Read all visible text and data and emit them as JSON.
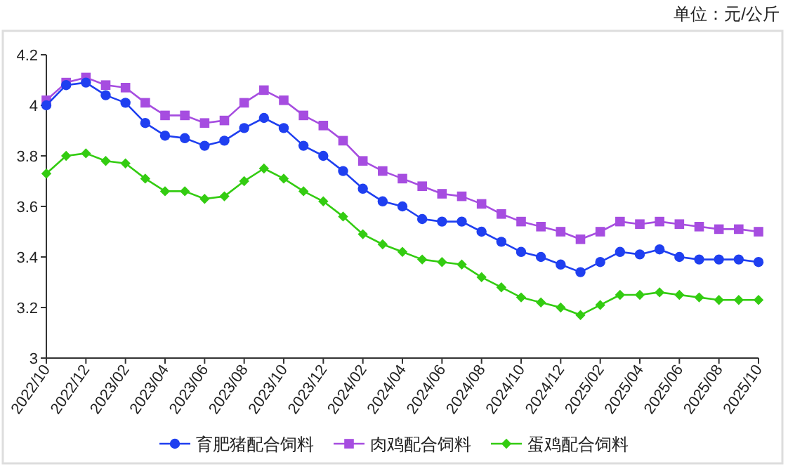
{
  "chart_data": {
    "type": "line",
    "title": "单位：元/公斤",
    "categories": [
      "2022/10",
      null,
      "2022/12",
      null,
      "2023/02",
      null,
      "2023/04",
      null,
      "2023/06",
      null,
      "2023/08",
      null,
      "2023/10",
      null,
      "2023/12",
      null,
      "2024/02",
      null,
      "2024/04",
      null,
      "2024/06",
      null,
      "2024/08",
      null,
      "2024/10",
      null,
      "2024/12",
      null,
      "2025/02",
      null,
      "2025/04",
      null,
      "2025/06",
      null,
      "2025/08",
      null,
      "2025/10"
    ],
    "series": [
      {
        "name": "育肥猪配合饲料",
        "color": "#1f3ff0",
        "marker": "circle",
        "values": [
          4.0,
          4.08,
          4.09,
          4.04,
          4.01,
          3.93,
          3.88,
          3.87,
          3.84,
          3.86,
          3.91,
          3.95,
          3.91,
          3.84,
          3.8,
          3.74,
          3.67,
          3.62,
          3.6,
          3.55,
          3.54,
          3.54,
          3.5,
          3.46,
          3.42,
          3.4,
          3.37,
          3.34,
          3.38,
          3.42,
          3.41,
          3.43,
          3.4,
          3.39,
          3.39,
          3.39,
          3.38
        ]
      },
      {
        "name": "肉鸡配合饲料",
        "color": "#a64de0",
        "marker": "square",
        "values": [
          4.02,
          4.09,
          4.11,
          4.08,
          4.07,
          4.01,
          3.96,
          3.96,
          3.93,
          3.94,
          4.01,
          4.06,
          4.02,
          3.96,
          3.92,
          3.86,
          3.78,
          3.74,
          3.71,
          3.68,
          3.65,
          3.64,
          3.61,
          3.57,
          3.54,
          3.52,
          3.5,
          3.47,
          3.5,
          3.54,
          3.53,
          3.54,
          3.53,
          3.52,
          3.51,
          3.51,
          3.5
        ]
      },
      {
        "name": "蛋鸡配合饲料",
        "color": "#33cc11",
        "marker": "diamond",
        "values": [
          3.73,
          3.8,
          3.81,
          3.78,
          3.77,
          3.71,
          3.66,
          3.66,
          3.63,
          3.64,
          3.7,
          3.75,
          3.71,
          3.66,
          3.62,
          3.56,
          3.49,
          3.45,
          3.42,
          3.39,
          3.38,
          3.37,
          3.32,
          3.28,
          3.24,
          3.22,
          3.2,
          3.17,
          3.21,
          3.25,
          3.25,
          3.26,
          3.25,
          3.24,
          3.23,
          3.23,
          3.23
        ]
      }
    ],
    "ylim": [
      3,
      4.2
    ],
    "yticks": [
      3,
      3.2,
      3.4,
      3.6,
      3.8,
      4,
      4.2
    ],
    "legend": "bottom",
    "grid": false
  }
}
